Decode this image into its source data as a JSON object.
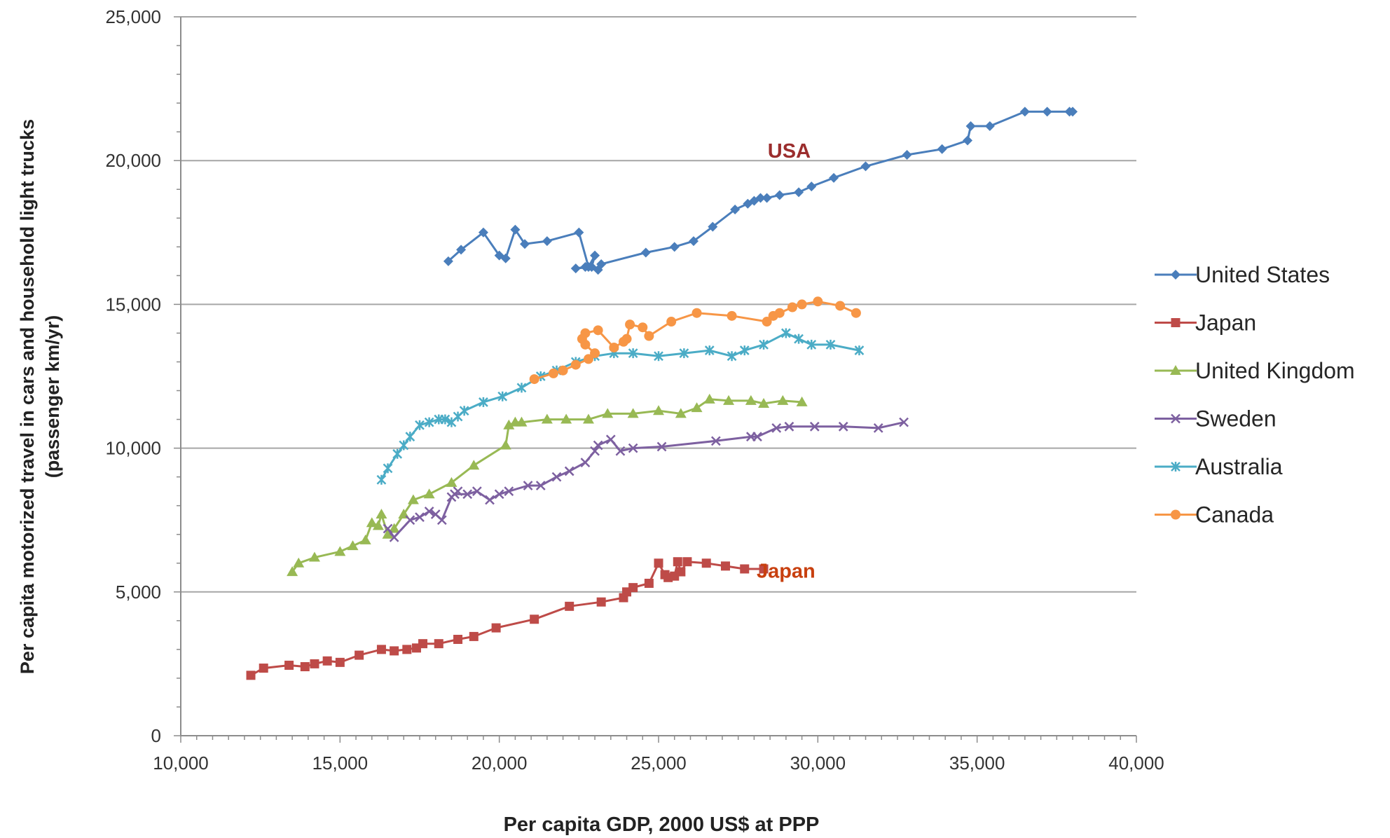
{
  "chart_data": {
    "type": "line",
    "xlabel": "Per capita GDP, 2000 US$ at PPP",
    "ylabel_line1": "Per capita motorized travel in cars and household light trucks",
    "ylabel_line2": "(passenger km/yr)",
    "xlim": [
      10000,
      40000
    ],
    "ylim": [
      0,
      25000
    ],
    "x_ticks": [
      10000,
      15000,
      20000,
      25000,
      30000,
      35000,
      40000
    ],
    "x_tick_labels": [
      "10,000",
      "15,000",
      "20,000",
      "25,000",
      "30,000",
      "35,000",
      "40,000"
    ],
    "y_ticks": [
      0,
      5000,
      10000,
      15000,
      20000,
      25000
    ],
    "y_tick_labels": [
      "0",
      "5,000",
      "10,000",
      "15,000",
      "20,000",
      "25,000"
    ],
    "grid": "horizontal",
    "legend_position": "right",
    "annotations": [
      {
        "text": "USA",
        "x": 29100,
        "y": 20100,
        "color": "#9b2d2d"
      },
      {
        "text": "Japan",
        "x": 29000,
        "y": 5500,
        "color": "#c8400f"
      }
    ],
    "series": [
      {
        "name": "United States",
        "color": "#4a7ebb",
        "marker": "diamond",
        "x": [
          18400,
          18800,
          19500,
          20000,
          20200,
          20500,
          20800,
          21500,
          22500,
          22800,
          23000,
          22900,
          22400,
          22700,
          23100,
          23200,
          24600,
          25500,
          26100,
          26700,
          27400,
          27800,
          28000,
          28200,
          28400,
          28800,
          29400,
          29800,
          30500,
          31500,
          32800,
          33900,
          34700,
          34800,
          35400,
          36500,
          37200,
          37900,
          38000
        ],
        "y": [
          16500,
          16900,
          17500,
          16700,
          16600,
          17600,
          17100,
          17200,
          17500,
          16300,
          16700,
          16300,
          16250,
          16300,
          16200,
          16400,
          16800,
          17000,
          17200,
          17700,
          18300,
          18500,
          18600,
          18700,
          18700,
          18800,
          18900,
          19100,
          19400,
          19800,
          20200,
          20400,
          20700,
          21200,
          21200,
          21700,
          21700,
          21700,
          21700
        ]
      },
      {
        "name": "Japan",
        "color": "#be4b48",
        "marker": "square",
        "x": [
          12200,
          12600,
          13400,
          13900,
          14200,
          14600,
          15000,
          15600,
          16300,
          16700,
          17100,
          17400,
          17600,
          18100,
          18700,
          19200,
          19900,
          21100,
          22200,
          23200,
          23900,
          24000,
          24200,
          24700,
          25000,
          25200,
          25300,
          25500,
          25600,
          25700,
          25900,
          26500,
          27100,
          27700,
          28300
        ],
        "y": [
          2100,
          2350,
          2450,
          2400,
          2500,
          2600,
          2550,
          2800,
          3000,
          2950,
          3000,
          3050,
          3200,
          3200,
          3350,
          3450,
          3750,
          4050,
          4500,
          4650,
          4800,
          5000,
          5150,
          5300,
          6000,
          5600,
          5500,
          5550,
          6050,
          5700,
          6050,
          6000,
          5900,
          5800,
          5800
        ]
      },
      {
        "name": "United Kingdom",
        "color": "#98b954",
        "marker": "triangle",
        "x": [
          13500,
          13700,
          14200,
          15000,
          15400,
          15800,
          16000,
          16200,
          16300,
          16500,
          16700,
          17000,
          17300,
          17800,
          18500,
          19200,
          20200,
          20300,
          20500,
          20700,
          21500,
          22100,
          22800,
          23400,
          24200,
          25000,
          25700,
          26200,
          26600,
          27200,
          27900,
          28300,
          28900,
          29500
        ],
        "y": [
          5700,
          6000,
          6200,
          6400,
          6600,
          6800,
          7400,
          7300,
          7700,
          7000,
          7200,
          7700,
          8200,
          8400,
          8800,
          9400,
          10100,
          10800,
          10900,
          10900,
          11000,
          11000,
          11000,
          11200,
          11200,
          11300,
          11200,
          11400,
          11700,
          11650,
          11650,
          11550,
          11650,
          11600
        ]
      },
      {
        "name": "Sweden",
        "color": "#7d60a0",
        "marker": "x",
        "x": [
          16500,
          16700,
          17200,
          17500,
          17800,
          18000,
          18200,
          18500,
          18700,
          18600,
          19000,
          19300,
          19700,
          20000,
          20300,
          20900,
          21300,
          21800,
          22200,
          22700,
          23000,
          23100,
          23500,
          23800,
          24200,
          25100,
          26800,
          27900,
          28100,
          28700,
          29100,
          29900,
          30800,
          31900,
          32700
        ],
        "y": [
          7200,
          6900,
          7500,
          7600,
          7800,
          7700,
          7500,
          8300,
          8500,
          8400,
          8400,
          8500,
          8200,
          8400,
          8500,
          8700,
          8700,
          9000,
          9200,
          9500,
          9900,
          10100,
          10300,
          9900,
          10000,
          10050,
          10250,
          10400,
          10400,
          10700,
          10750,
          10750,
          10750,
          10700,
          10900
        ]
      },
      {
        "name": "Australia",
        "color": "#4bacc6",
        "marker": "star",
        "x": [
          16300,
          16500,
          16800,
          17000,
          17200,
          17500,
          17800,
          18100,
          18300,
          18500,
          18700,
          18900,
          19500,
          20100,
          20700,
          21300,
          21800,
          22400,
          23000,
          23600,
          24200,
          25000,
          25800,
          26600,
          27300,
          27700,
          28300,
          29000,
          29400,
          29800,
          30400,
          31300
        ],
        "y": [
          8900,
          9300,
          9800,
          10100,
          10400,
          10800,
          10900,
          11000,
          11000,
          10900,
          11100,
          11300,
          11600,
          11800,
          12100,
          12500,
          12700,
          13000,
          13200,
          13300,
          13300,
          13200,
          13300,
          13400,
          13200,
          13400,
          13600,
          14000,
          13800,
          13600,
          13600,
          13400
        ]
      },
      {
        "name": "Canada",
        "color": "#f79646",
        "marker": "circle",
        "x": [
          21100,
          21700,
          22000,
          22400,
          22800,
          23000,
          22700,
          22600,
          22700,
          23100,
          23600,
          23900,
          24000,
          24100,
          24500,
          24700,
          25400,
          26200,
          27300,
          28400,
          28600,
          28800,
          29200,
          29500,
          30000,
          30700,
          31200
        ],
        "y": [
          12400,
          12600,
          12700,
          12900,
          13100,
          13300,
          13600,
          13800,
          14000,
          14100,
          13500,
          13700,
          13800,
          14300,
          14200,
          13900,
          14400,
          14700,
          14600,
          14400,
          14600,
          14700,
          14900,
          15000,
          15100,
          14950,
          14700
        ]
      }
    ]
  }
}
